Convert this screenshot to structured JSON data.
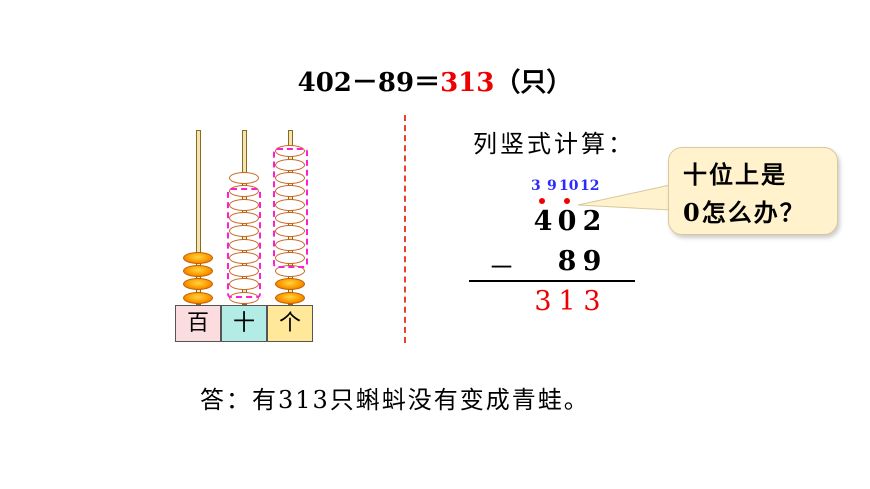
{
  "equation": {
    "left": "402－89＝",
    "result": "313",
    "unit": "（只）"
  },
  "abacus": {
    "labels": [
      "百",
      "十",
      "个"
    ],
    "colors": {
      "hundreds": "#fbdde0",
      "tens": "#b2ece4",
      "ones": "#ffe89a"
    }
  },
  "vertical": {
    "heading": "列竖式计算：",
    "carries": [
      "3",
      "9",
      "10",
      "12"
    ],
    "minuend": [
      "4",
      "0",
      "2"
    ],
    "minus": "－",
    "subtrahend": [
      "8",
      "9"
    ],
    "result": [
      "3",
      "1",
      "3"
    ]
  },
  "bubble": {
    "line1": "十位上是",
    "line2": "0怎么办？"
  },
  "answer": "答：有313只蝌蚪没有变成青蛙。"
}
